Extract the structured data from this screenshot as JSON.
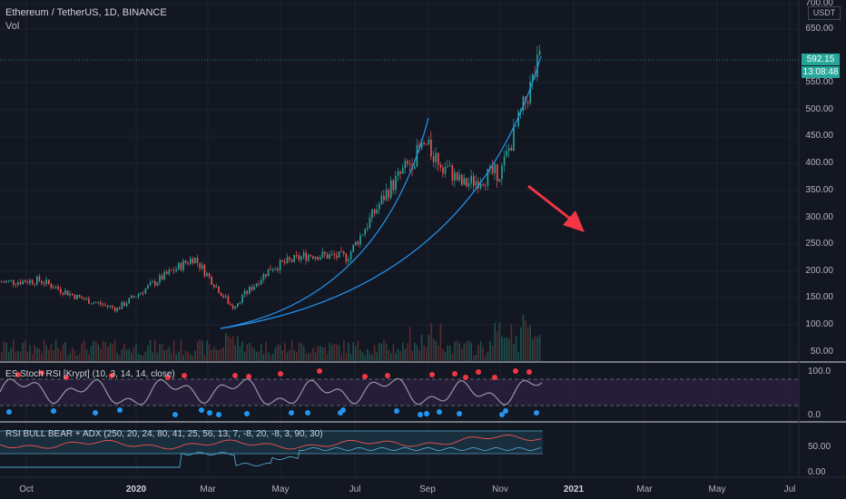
{
  "header": {
    "symbol_line": "Ethereum / TetherUS, 1D, BINANCE",
    "volume_label": "Vol"
  },
  "price_scale": {
    "currency": "USDT",
    "labels": [
      "700.00",
      "650.00",
      "550.00",
      "500.00",
      "450.00",
      "400.00",
      "350.00",
      "300.00",
      "250.00",
      "200.00",
      "150.00",
      "100.00",
      "50.00"
    ],
    "last_price": "592.15",
    "countdown": "13:08:48"
  },
  "indicators": {
    "stoch_rsi": {
      "title": "ES Stoch RSI [Krypt] (10, 3, 14, 14, close)",
      "scale": [
        "100.0",
        "0.0"
      ]
    },
    "rsi_adx": {
      "title": "RSI BULL BEAR + ADX (250, 20, 24, 80, 41, 25, 56, 13, 7, -8, 20, -8, 3, 90, 30)",
      "scale": [
        "50.00",
        "0.00"
      ]
    }
  },
  "time_axis": [
    "Oct",
    "2020",
    "Mar",
    "May",
    "Jul",
    "Sep",
    "Nov",
    "2021",
    "Mar",
    "May",
    "Jul"
  ],
  "colors": {
    "background": "#131722",
    "up": "#26a69a",
    "down": "#ef5350",
    "curve": "#2196f3",
    "arrow": "#f23645",
    "stoch_line": "#9598a1",
    "stoch_top_dot": "#f23645",
    "stoch_bottom_dot": "#2196f3"
  },
  "chart_data": {
    "type": "candlestick",
    "symbol": "ETH/USDT",
    "interval": "1D",
    "exchange": "BINANCE",
    "ylim": [
      40,
      705
    ],
    "last_price": 592.15,
    "monthly_closes": [
      {
        "x": "Sep 2019",
        "y": 180
      },
      {
        "x": "Oct 2019",
        "y": 183
      },
      {
        "x": "Nov 2019",
        "y": 151
      },
      {
        "x": "Dec 2019",
        "y": 130
      },
      {
        "x": "Jan 2020",
        "y": 180
      },
      {
        "x": "Feb 2020",
        "y": 226
      },
      {
        "x": "Mar 2020",
        "y": 133
      },
      {
        "x": "Apr 2020",
        "y": 206
      },
      {
        "x": "May 2020",
        "y": 231
      },
      {
        "x": "Jun 2020",
        "y": 226
      },
      {
        "x": "Jul 2020",
        "y": 345
      },
      {
        "x": "Aug 2020",
        "y": 435
      },
      {
        "x": "Sep 2020",
        "y": 360
      },
      {
        "x": "Oct 2020",
        "y": 386
      },
      {
        "x": "Nov 2020",
        "y": 592
      }
    ]
  }
}
